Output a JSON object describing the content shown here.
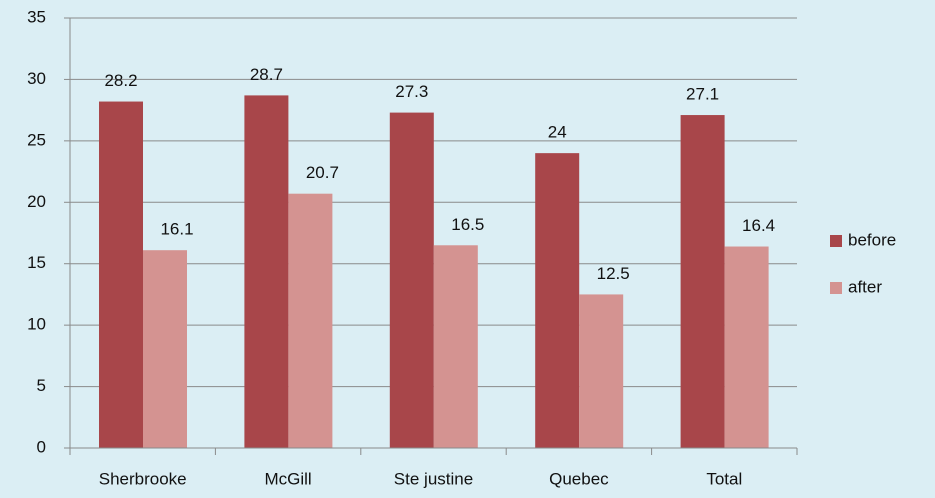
{
  "chart_data": {
    "type": "bar",
    "categories": [
      "Sherbrooke",
      "McGill",
      "Ste justine",
      "Quebec",
      "Total"
    ],
    "series": [
      {
        "name": "before",
        "color": "#a8464a",
        "values": [
          28.2,
          28.7,
          27.3,
          24,
          27.1
        ]
      },
      {
        "name": "after",
        "color": "#d49391",
        "values": [
          16.1,
          20.7,
          16.5,
          12.5,
          16.4
        ]
      }
    ],
    "ylim": [
      0,
      35
    ],
    "yticks": [
      0,
      5,
      10,
      15,
      20,
      25,
      30,
      35
    ],
    "grid": true,
    "legend": "right"
  }
}
